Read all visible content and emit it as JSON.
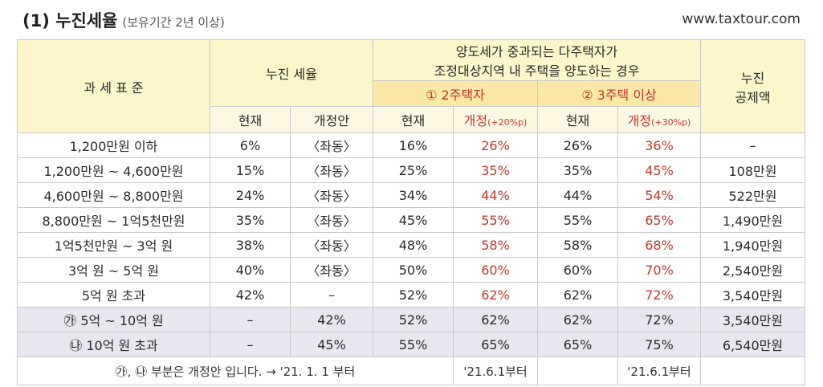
{
  "header": {
    "title": "(1) 누진세율",
    "subtitle": "(보유기간 2년 이상)",
    "site": "www.taxtour.com"
  },
  "table": {
    "head": {
      "base": "과 세 표 준",
      "progressive": "누진 세율",
      "heavy_line1": "양도세가 중과되는 다주택자가",
      "heavy_line2": "조정대상지역 내 주택을 양도하는 경우",
      "deduction_line1": "누진",
      "deduction_line2": "공제액",
      "two_house": "① 2주택자",
      "three_house": "② 3주택 이상",
      "current": "현재",
      "proposal": "개정안",
      "rev_label": "개정",
      "rev20": "(+20%p)",
      "rev30": "(+30%p)"
    },
    "rows": [
      {
        "base": "1,200만원 이하",
        "cur": "6%",
        "prop": "〈좌동〉",
        "two_cur": "16%",
        "two_rev": "26%",
        "three_cur": "26%",
        "three_rev": "36%",
        "ded": "–"
      },
      {
        "base": "1,200만원 ~ 4,600만원",
        "cur": "15%",
        "prop": "〈좌동〉",
        "two_cur": "25%",
        "two_rev": "35%",
        "three_cur": "35%",
        "three_rev": "45%",
        "ded": "108만원"
      },
      {
        "base": "4,600만원 ~ 8,800만원",
        "cur": "24%",
        "prop": "〈좌동〉",
        "two_cur": "34%",
        "two_rev": "44%",
        "three_cur": "44%",
        "three_rev": "54%",
        "ded": "522만원"
      },
      {
        "base": "8,800만원 ~ 1억5천만원",
        "cur": "35%",
        "prop": "〈좌동〉",
        "two_cur": "45%",
        "two_rev": "55%",
        "three_cur": "55%",
        "three_rev": "65%",
        "ded": "1,490만원"
      },
      {
        "base": "1억5천만원 ~ 3억 원",
        "cur": "38%",
        "prop": "〈좌동〉",
        "two_cur": "48%",
        "two_rev": "58%",
        "three_cur": "58%",
        "three_rev": "68%",
        "ded": "1,940만원"
      },
      {
        "base": "3억 원 ~ 5억 원",
        "cur": "40%",
        "prop": "〈좌동〉",
        "two_cur": "50%",
        "two_rev": "60%",
        "three_cur": "60%",
        "three_rev": "70%",
        "ded": "2,540만원"
      },
      {
        "base": "5억 원 초과",
        "cur": "42%",
        "prop": "–",
        "two_cur": "52%",
        "two_rev": "62%",
        "three_cur": "62%",
        "three_rev": "72%",
        "ded": "3,540만원"
      },
      {
        "base": "㉮ 5억 ~ 10억 원",
        "cur": "–",
        "prop": "42%",
        "two_cur": "52%",
        "two_rev": "62%",
        "three_cur": "62%",
        "three_rev": "72%",
        "ded": "3,540만원"
      },
      {
        "base": "㉯ 10억 원 초과",
        "cur": "–",
        "prop": "45%",
        "two_cur": "55%",
        "two_rev": "65%",
        "three_cur": "65%",
        "three_rev": "75%",
        "ded": "6,540만원"
      }
    ],
    "note": "㉮, ㉯ 부분은 개정안 입니다. → '21. 1. 1 부터",
    "date_two": "'21.6.1부터",
    "date_three": "'21.6.1부터"
  }
}
